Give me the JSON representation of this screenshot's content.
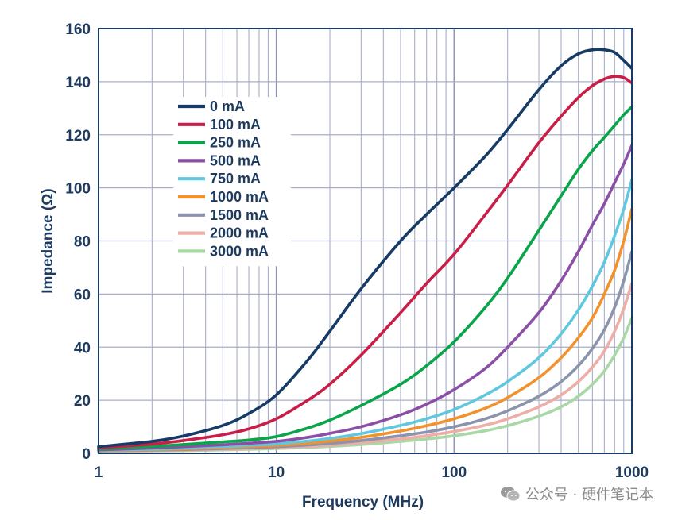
{
  "chart_data": {
    "type": "line",
    "title": "",
    "xlabel": "Frequency (MHz)",
    "ylabel": "Impedance (Ω)",
    "xscale": "log",
    "xlim": [
      1,
      1000
    ],
    "ylim": [
      0,
      160
    ],
    "x_ticks": [
      {
        "value": 1,
        "label": "1"
      },
      {
        "value": 10,
        "label": "10"
      },
      {
        "value": 100,
        "label": "100"
      },
      {
        "value": 1000,
        "label": "1000"
      }
    ],
    "y_ticks": [
      {
        "value": 0,
        "label": "0"
      },
      {
        "value": 20,
        "label": "20"
      },
      {
        "value": 40,
        "label": "40"
      },
      {
        "value": 60,
        "label": "60"
      },
      {
        "value": 80,
        "label": "80"
      },
      {
        "value": 100,
        "label": "100"
      },
      {
        "value": 120,
        "label": "120"
      },
      {
        "value": 140,
        "label": "140"
      },
      {
        "value": 160,
        "label": "160"
      }
    ],
    "grid": true,
    "legend_position": "upper-left",
    "series": [
      {
        "name": "0 mA",
        "color": "#173b67",
        "x": [
          1,
          2,
          3,
          5,
          7,
          10,
          15,
          20,
          30,
          50,
          70,
          100,
          150,
          200,
          300,
          400,
          500,
          600,
          700,
          800,
          900,
          1000
        ],
        "y": [
          2.5,
          4.5,
          6.5,
          10.5,
          15,
          22,
          35,
          46,
          62,
          80,
          90,
          100,
          112,
          122,
          137,
          146,
          150.5,
          152,
          152,
          151,
          148,
          145
        ]
      },
      {
        "name": "100 mA",
        "color": "#c81e47",
        "x": [
          1,
          2,
          3,
          5,
          7,
          10,
          15,
          20,
          30,
          50,
          70,
          100,
          150,
          200,
          300,
          400,
          500,
          600,
          700,
          800,
          900,
          1000
        ],
        "y": [
          2,
          3.5,
          4.8,
          7,
          9.2,
          13,
          20,
          26,
          37,
          53,
          64,
          75,
          90,
          101,
          117,
          127,
          134,
          138.5,
          141,
          142,
          141.5,
          139.5
        ]
      },
      {
        "name": "250 mA",
        "color": "#0aa54a",
        "x": [
          1,
          2,
          3,
          5,
          7,
          10,
          15,
          20,
          30,
          50,
          70,
          100,
          150,
          200,
          300,
          400,
          500,
          600,
          700,
          800,
          900,
          1000
        ],
        "y": [
          1.6,
          2.6,
          3.3,
          4.3,
          5,
          6.3,
          9.5,
          12.5,
          18,
          26,
          33,
          42,
          55,
          66,
          84,
          97,
          107,
          114,
          119,
          123.5,
          127.5,
          130.5
        ]
      },
      {
        "name": "500 mA",
        "color": "#8b4fa6",
        "x": [
          1,
          2,
          3,
          5,
          7,
          10,
          15,
          20,
          30,
          50,
          70,
          100,
          150,
          200,
          300,
          400,
          500,
          600,
          700,
          800,
          900,
          1000
        ],
        "y": [
          1.3,
          2,
          2.5,
          3.2,
          3.8,
          4.5,
          6,
          7.5,
          10,
          14.5,
          18.5,
          24,
          32,
          40,
          53,
          65,
          76,
          86,
          94,
          102,
          109,
          116
        ]
      },
      {
        "name": "750 mA",
        "color": "#5fc8df",
        "x": [
          1,
          2,
          3,
          5,
          7,
          10,
          15,
          20,
          30,
          50,
          70,
          100,
          150,
          200,
          300,
          400,
          500,
          600,
          700,
          800,
          900,
          1000
        ],
        "y": [
          1.1,
          1.6,
          2,
          2.6,
          3,
          3.6,
          4.6,
          5.6,
          7.4,
          10.5,
          13,
          16.5,
          22,
          27,
          36,
          45,
          54,
          63,
          72,
          82,
          92,
          103
        ]
      },
      {
        "name": "1000 mA",
        "color": "#f2922c",
        "x": [
          1,
          2,
          3,
          5,
          7,
          10,
          15,
          20,
          30,
          50,
          70,
          100,
          150,
          200,
          300,
          400,
          500,
          600,
          700,
          800,
          900,
          1000
        ],
        "y": [
          1,
          1.4,
          1.7,
          2.2,
          2.6,
          3,
          3.8,
          4.6,
          6,
          8.4,
          10.4,
          13,
          17,
          21,
          28.5,
          36,
          43.5,
          51,
          60,
          69,
          80,
          92
        ]
      },
      {
        "name": "1500 mA",
        "color": "#8c94ad",
        "x": [
          1,
          2,
          3,
          5,
          7,
          10,
          15,
          20,
          30,
          50,
          70,
          100,
          150,
          200,
          300,
          400,
          500,
          600,
          700,
          800,
          900,
          1000
        ],
        "y": [
          0.9,
          1.2,
          1.4,
          1.8,
          2.1,
          2.5,
          3.1,
          3.7,
          4.8,
          6.6,
          8,
          10,
          13,
          16,
          21.5,
          27,
          33,
          39.5,
          46.5,
          55,
          65,
          76
        ]
      },
      {
        "name": "2000 mA",
        "color": "#eeada6",
        "x": [
          1,
          2,
          3,
          5,
          7,
          10,
          15,
          20,
          30,
          50,
          70,
          100,
          150,
          200,
          300,
          400,
          500,
          600,
          700,
          800,
          900,
          1000
        ],
        "y": [
          0.8,
          1,
          1.2,
          1.5,
          1.8,
          2.1,
          2.6,
          3.1,
          4,
          5.4,
          6.6,
          8.2,
          10.6,
          13,
          17.5,
          22,
          27,
          32.5,
          38.5,
          46,
          54.5,
          64
        ]
      },
      {
        "name": "3000 mA",
        "color": "#a8d9a4",
        "x": [
          1,
          2,
          3,
          5,
          7,
          10,
          15,
          20,
          30,
          50,
          70,
          100,
          150,
          200,
          300,
          400,
          500,
          600,
          700,
          800,
          900,
          1000
        ],
        "y": [
          0.7,
          0.9,
          1,
          1.3,
          1.5,
          1.8,
          2.2,
          2.6,
          3.3,
          4.5,
          5.4,
          6.6,
          8.5,
          10.4,
          14,
          17.5,
          21.5,
          26,
          31,
          37,
          43.5,
          51
        ]
      }
    ]
  },
  "watermark": {
    "icon": "wechat-icon",
    "text": "公众号 · 硬件笔记本"
  }
}
